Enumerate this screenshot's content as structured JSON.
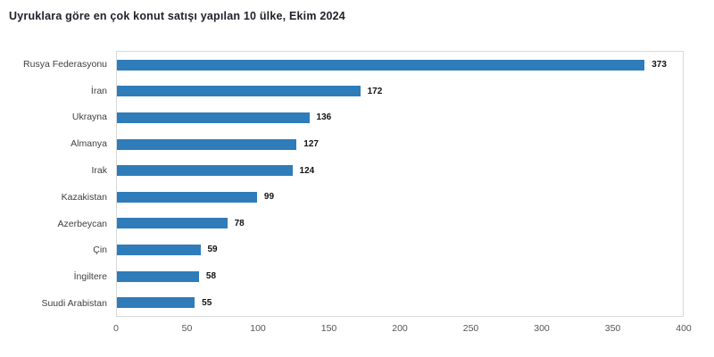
{
  "title": "Uyruklara göre en çok konut satışı yapılan 10 ülke, Ekim 2024",
  "colors": {
    "bar": "#2e7cba",
    "title": "#21212b",
    "category_label": "#404040",
    "value_label": "#121212",
    "tick_label": "#555555",
    "plot_border": "#d9d9d9",
    "background": "#ffffff"
  },
  "chart_data": {
    "type": "bar",
    "orientation": "horizontal",
    "title": "Uyruklara göre en çok konut satışı yapılan 10 ülke, Ekim 2024",
    "categories": [
      "Rusya Federasyonu",
      "İran",
      "Ukrayna",
      "Almanya",
      "Irak",
      "Kazakistan",
      "Azerbeycan",
      "Çin",
      "İngiltere",
      "Suudi Arabistan"
    ],
    "values": [
      373,
      172,
      136,
      127,
      124,
      99,
      78,
      59,
      58,
      55
    ],
    "xlabel": "",
    "ylabel": "",
    "xlim": [
      0,
      400
    ],
    "xticks": [
      0,
      50,
      100,
      150,
      200,
      250,
      300,
      350,
      400
    ],
    "grid": false,
    "legend": false,
    "value_labels": true
  }
}
